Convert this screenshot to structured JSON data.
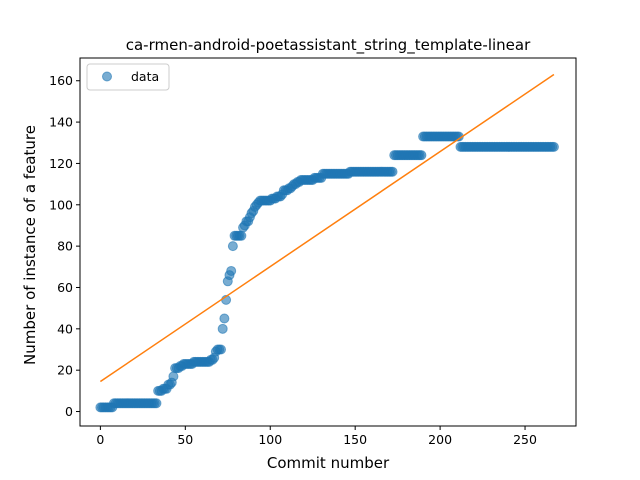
{
  "chart_data": {
    "type": "scatter",
    "title": "ca-rmen-android-poetassistant_string_template-linear",
    "xlabel": "Commit number",
    "ylabel": "Number of instance of a feature",
    "xlim": [
      -12,
      280
    ],
    "ylim": [
      -7,
      171
    ],
    "xticks": [
      0,
      50,
      100,
      150,
      200,
      250
    ],
    "yticks": [
      0,
      20,
      40,
      60,
      80,
      100,
      120,
      140,
      160
    ],
    "grid": false,
    "legend": {
      "placement": "top-left",
      "entries": [
        "data"
      ]
    },
    "colors": {
      "data": "#1f77b4",
      "fit": "#ff7f0e"
    },
    "series": [
      {
        "name": "data",
        "kind": "scatter",
        "points": [
          [
            0,
            2
          ],
          [
            1,
            2
          ],
          [
            2,
            2
          ],
          [
            3,
            2
          ],
          [
            4,
            2
          ],
          [
            5,
            2
          ],
          [
            6,
            2
          ],
          [
            7,
            2
          ],
          [
            8,
            4
          ],
          [
            9,
            4
          ],
          [
            10,
            4
          ],
          [
            11,
            4
          ],
          [
            12,
            4
          ],
          [
            13,
            4
          ],
          [
            14,
            4
          ],
          [
            15,
            4
          ],
          [
            16,
            4
          ],
          [
            17,
            4
          ],
          [
            18,
            4
          ],
          [
            19,
            4
          ],
          [
            20,
            4
          ],
          [
            21,
            4
          ],
          [
            22,
            4
          ],
          [
            23,
            4
          ],
          [
            24,
            4
          ],
          [
            25,
            4
          ],
          [
            26,
            4
          ],
          [
            27,
            4
          ],
          [
            28,
            4
          ],
          [
            29,
            4
          ],
          [
            30,
            4
          ],
          [
            31,
            4
          ],
          [
            32,
            4
          ],
          [
            33,
            4
          ],
          [
            34,
            10
          ],
          [
            35,
            10
          ],
          [
            36,
            10
          ],
          [
            37,
            11
          ],
          [
            38,
            11
          ],
          [
            39,
            11
          ],
          [
            40,
            13
          ],
          [
            41,
            13
          ],
          [
            42,
            14
          ],
          [
            43,
            17
          ],
          [
            44,
            21
          ],
          [
            45,
            21
          ],
          [
            46,
            21
          ],
          [
            47,
            22
          ],
          [
            48,
            22
          ],
          [
            49,
            23
          ],
          [
            50,
            23
          ],
          [
            51,
            23
          ],
          [
            52,
            23
          ],
          [
            53,
            23
          ],
          [
            54,
            23
          ],
          [
            55,
            24
          ],
          [
            56,
            24
          ],
          [
            57,
            24
          ],
          [
            58,
            24
          ],
          [
            59,
            24
          ],
          [
            60,
            24
          ],
          [
            61,
            24
          ],
          [
            62,
            24
          ],
          [
            63,
            24
          ],
          [
            64,
            24
          ],
          [
            65,
            25
          ],
          [
            66,
            25
          ],
          [
            67,
            26
          ],
          [
            68,
            29
          ],
          [
            69,
            30
          ],
          [
            70,
            30
          ],
          [
            71,
            30
          ],
          [
            72,
            40
          ],
          [
            73,
            45
          ],
          [
            74,
            54
          ],
          [
            75,
            63
          ],
          [
            76,
            66
          ],
          [
            77,
            68
          ],
          [
            78,
            80
          ],
          [
            79,
            85
          ],
          [
            80,
            85
          ],
          [
            81,
            85
          ],
          [
            82,
            85
          ],
          [
            83,
            85
          ],
          [
            84,
            89
          ],
          [
            85,
            90
          ],
          [
            86,
            92
          ],
          [
            87,
            92
          ],
          [
            88,
            94
          ],
          [
            89,
            96
          ],
          [
            90,
            97
          ],
          [
            91,
            99
          ],
          [
            92,
            100
          ],
          [
            93,
            101
          ],
          [
            94,
            102
          ],
          [
            95,
            102
          ],
          [
            96,
            102
          ],
          [
            97,
            102
          ],
          [
            98,
            102
          ],
          [
            99,
            102
          ],
          [
            100,
            102
          ],
          [
            101,
            103
          ],
          [
            102,
            103
          ],
          [
            103,
            103
          ],
          [
            104,
            104
          ],
          [
            105,
            104
          ],
          [
            106,
            104
          ],
          [
            107,
            105
          ],
          [
            108,
            107
          ],
          [
            109,
            107
          ],
          [
            110,
            107
          ],
          [
            111,
            108
          ],
          [
            112,
            108
          ],
          [
            113,
            109
          ],
          [
            114,
            110
          ],
          [
            115,
            110
          ],
          [
            116,
            111
          ],
          [
            117,
            111
          ],
          [
            118,
            112
          ],
          [
            119,
            112
          ],
          [
            120,
            112
          ],
          [
            121,
            112
          ],
          [
            122,
            112
          ],
          [
            123,
            112
          ],
          [
            124,
            112
          ],
          [
            125,
            112
          ],
          [
            126,
            113
          ],
          [
            127,
            113
          ],
          [
            128,
            113
          ],
          [
            129,
            113
          ],
          [
            130,
            113
          ],
          [
            131,
            115
          ],
          [
            132,
            115
          ],
          [
            133,
            115
          ],
          [
            134,
            115
          ],
          [
            135,
            115
          ],
          [
            136,
            115
          ],
          [
            137,
            115
          ],
          [
            138,
            115
          ],
          [
            139,
            115
          ],
          [
            140,
            115
          ],
          [
            141,
            115
          ],
          [
            142,
            115
          ],
          [
            143,
            115
          ],
          [
            144,
            115
          ],
          [
            145,
            115
          ],
          [
            146,
            115
          ],
          [
            147,
            116
          ],
          [
            148,
            116
          ],
          [
            149,
            116
          ],
          [
            150,
            116
          ],
          [
            151,
            116
          ],
          [
            152,
            116
          ],
          [
            153,
            116
          ],
          [
            154,
            116
          ],
          [
            155,
            116
          ],
          [
            156,
            116
          ],
          [
            157,
            116
          ],
          [
            158,
            116
          ],
          [
            159,
            116
          ],
          [
            160,
            116
          ],
          [
            161,
            116
          ],
          [
            162,
            116
          ],
          [
            163,
            116
          ],
          [
            164,
            116
          ],
          [
            165,
            116
          ],
          [
            166,
            116
          ],
          [
            167,
            116
          ],
          [
            168,
            116
          ],
          [
            169,
            116
          ],
          [
            170,
            116
          ],
          [
            171,
            116
          ],
          [
            172,
            116
          ],
          [
            173,
            124
          ],
          [
            174,
            124
          ],
          [
            175,
            124
          ],
          [
            176,
            124
          ],
          [
            177,
            124
          ],
          [
            178,
            124
          ],
          [
            179,
            124
          ],
          [
            180,
            124
          ],
          [
            181,
            124
          ],
          [
            182,
            124
          ],
          [
            183,
            124
          ],
          [
            184,
            124
          ],
          [
            185,
            124
          ],
          [
            186,
            124
          ],
          [
            187,
            124
          ],
          [
            188,
            124
          ],
          [
            189,
            124
          ],
          [
            190,
            133
          ],
          [
            191,
            133
          ],
          [
            192,
            133
          ],
          [
            193,
            133
          ],
          [
            194,
            133
          ],
          [
            195,
            133
          ],
          [
            196,
            133
          ],
          [
            197,
            133
          ],
          [
            198,
            133
          ],
          [
            199,
            133
          ],
          [
            200,
            133
          ],
          [
            201,
            133
          ],
          [
            202,
            133
          ],
          [
            203,
            133
          ],
          [
            204,
            133
          ],
          [
            205,
            133
          ],
          [
            206,
            133
          ],
          [
            207,
            133
          ],
          [
            208,
            133
          ],
          [
            209,
            133
          ],
          [
            210,
            133
          ],
          [
            211,
            133
          ],
          [
            212,
            128
          ],
          [
            213,
            128
          ],
          [
            214,
            128
          ],
          [
            215,
            128
          ],
          [
            216,
            128
          ],
          [
            217,
            128
          ],
          [
            218,
            128
          ],
          [
            219,
            128
          ],
          [
            220,
            128
          ],
          [
            221,
            128
          ],
          [
            222,
            128
          ],
          [
            223,
            128
          ],
          [
            224,
            128
          ],
          [
            225,
            128
          ],
          [
            226,
            128
          ],
          [
            227,
            128
          ],
          [
            228,
            128
          ],
          [
            229,
            128
          ],
          [
            230,
            128
          ],
          [
            231,
            128
          ],
          [
            232,
            128
          ],
          [
            233,
            128
          ],
          [
            234,
            128
          ],
          [
            235,
            128
          ],
          [
            236,
            128
          ],
          [
            237,
            128
          ],
          [
            238,
            128
          ],
          [
            239,
            128
          ],
          [
            240,
            128
          ],
          [
            241,
            128
          ],
          [
            242,
            128
          ],
          [
            243,
            128
          ],
          [
            244,
            128
          ],
          [
            245,
            128
          ],
          [
            246,
            128
          ],
          [
            247,
            128
          ],
          [
            248,
            128
          ],
          [
            249,
            128
          ],
          [
            250,
            128
          ],
          [
            251,
            128
          ],
          [
            252,
            128
          ],
          [
            253,
            128
          ],
          [
            254,
            128
          ],
          [
            255,
            128
          ],
          [
            256,
            128
          ],
          [
            257,
            128
          ],
          [
            258,
            128
          ],
          [
            259,
            128
          ],
          [
            260,
            128
          ],
          [
            261,
            128
          ],
          [
            262,
            128
          ],
          [
            263,
            128
          ],
          [
            264,
            128
          ],
          [
            265,
            128
          ],
          [
            266,
            128
          ],
          [
            267,
            128
          ]
        ]
      },
      {
        "kind": "line",
        "points": [
          [
            0,
            14.5
          ],
          [
            267,
            163
          ]
        ]
      }
    ]
  }
}
